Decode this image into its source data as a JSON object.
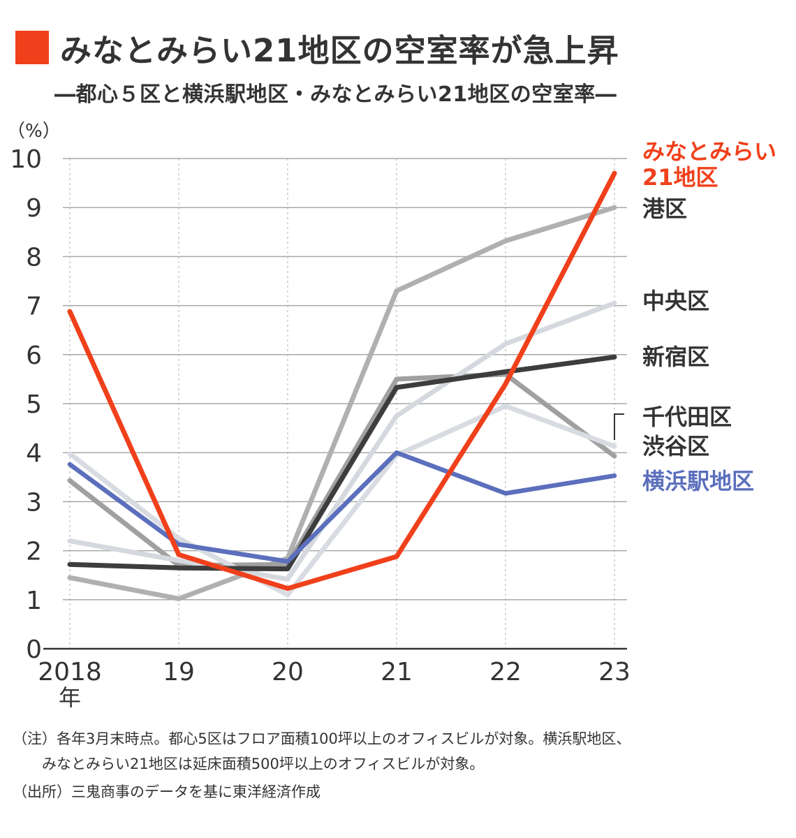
{
  "title": "みなとみらい21地区の空室率が急上昇",
  "subtitle": "―都心５区と横浜駅地区・みなとみらい21地区の空室率―",
  "notes": [
    "（注）各年3月末時点。都心5区はフロア面積100坪以上のオフィスビルが対象。横浜駅地区、",
    "　　みなとみらい21地区は延床面積500坪以上のオフィスビルが対象。",
    "（出所）三鬼商事のデータを基に東洋経済作成"
  ],
  "chart_data": {
    "type": "line",
    "x": [
      "2018",
      "19",
      "20",
      "21",
      "22",
      "23"
    ],
    "x_unit": "年",
    "y_unit": "（%）",
    "ylim": [
      0,
      10
    ],
    "y_ticks": [
      0,
      1,
      2,
      3,
      4,
      5,
      6,
      7,
      8,
      9,
      10
    ],
    "grid": true,
    "legend_placement": "right (labels at line ends)",
    "series": [
      {
        "name": "港区",
        "color": "#b0b0b0",
        "values": [
          1.45,
          1.02,
          1.85,
          7.3,
          8.32,
          9.0
        ]
      },
      {
        "name": "千代田区",
        "color": "#a0a0a0",
        "values": [
          3.43,
          1.7,
          1.72,
          5.5,
          5.6,
          3.93
        ]
      },
      {
        "name": "渋谷区",
        "color": "#d8dce2",
        "values": [
          3.98,
          2.25,
          1.1,
          3.95,
          4.95,
          4.13
        ]
      },
      {
        "name": "中央区",
        "color": "#d5d9df",
        "values": [
          2.2,
          1.8,
          1.42,
          4.75,
          6.22,
          7.05
        ]
      },
      {
        "name": "新宿区",
        "color": "#3d3d3d",
        "values": [
          1.72,
          1.65,
          1.63,
          5.33,
          5.65,
          5.95
        ]
      },
      {
        "name": "横浜駅地区",
        "color": "#5b6fbc",
        "values": [
          3.76,
          2.13,
          1.78,
          4.0,
          3.17,
          3.53
        ]
      },
      {
        "name": "みなとみらい21地区",
        "color": "#f0401b",
        "values": [
          6.88,
          1.92,
          1.23,
          1.88,
          5.4,
          9.7
        ]
      }
    ],
    "labels": [
      {
        "text": "みなとみらい",
        "color": "#f0401b"
      },
      {
        "text": "21地区",
        "color": "#f0401b"
      },
      {
        "text": "港区",
        "color": "#333333"
      },
      {
        "text": "中央区",
        "color": "#333333"
      },
      {
        "text": "新宿区",
        "color": "#333333"
      },
      {
        "text": "千代田区",
        "color": "#333333"
      },
      {
        "text": "渋谷区",
        "color": "#333333"
      },
      {
        "text": "横浜駅地区",
        "color": "#5b6fbc"
      }
    ]
  }
}
